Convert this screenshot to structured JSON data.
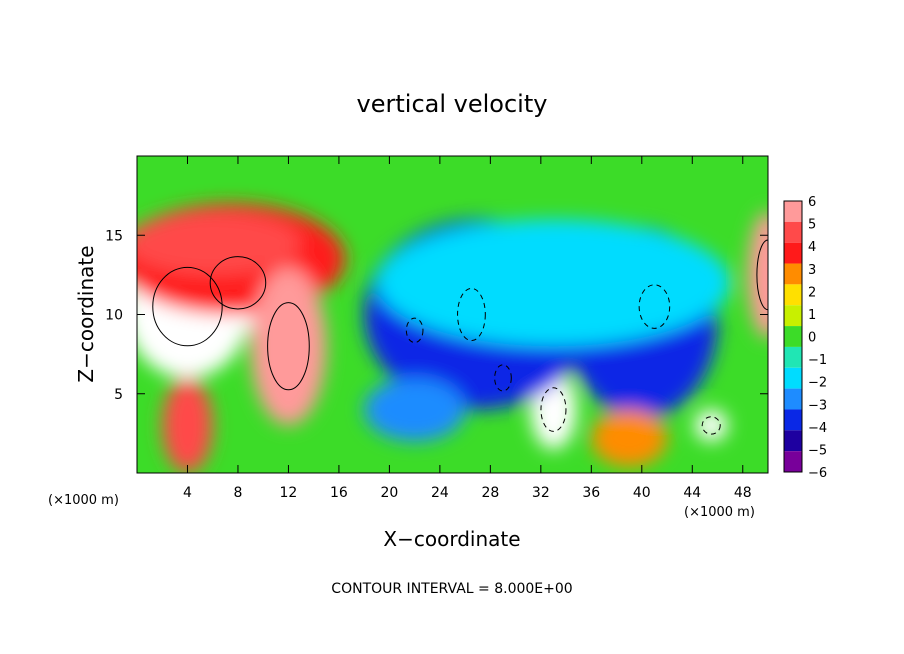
{
  "chart_data": {
    "type": "heatmap",
    "title": "vertical velocity",
    "xlabel": "X−coordinate",
    "ylabel": "Z−coordinate",
    "x_unit_left": "(×1000 m)",
    "x_unit_right": "(×1000 m)",
    "xlim": [
      0,
      50
    ],
    "ylim": [
      0,
      20
    ],
    "x_ticks": [
      4,
      8,
      12,
      16,
      20,
      24,
      28,
      32,
      36,
      40,
      44,
      48
    ],
    "x_tick_labels": [
      "4",
      "8",
      "12",
      "16",
      "20",
      "24",
      "28",
      "32",
      "36",
      "40",
      "44",
      "48"
    ],
    "y_ticks": [
      5,
      10,
      15
    ],
    "y_tick_labels": [
      "5",
      "10",
      "15"
    ],
    "colorbar": {
      "min": -6,
      "max": 6,
      "levels": [
        6,
        5,
        4,
        3,
        2,
        1,
        0,
        -1,
        -2,
        -3,
        -4,
        -5,
        -6
      ],
      "labels": [
        "6",
        "5",
        "4",
        "3",
        "2",
        "1",
        "0",
        "−1",
        "−2",
        "−3",
        "−4",
        "−5",
        "−6"
      ],
      "colors": [
        "#ff9a9a",
        "#ff4a4a",
        "#ff1a1a",
        "#ff8c00",
        "#ffe000",
        "#c8f000",
        "#3cdc28",
        "#20e6b4",
        "#00dcff",
        "#1e8cff",
        "#0a28e6",
        "#1e00a0",
        "#78009a"
      ]
    },
    "background_color": "#3cdc28",
    "features": [
      {
        "cx": 4,
        "cz": 10.5,
        "rx": 5,
        "rz": 4.5,
        "value": 7
      },
      {
        "cx": 8,
        "cz": 12,
        "rx": 4,
        "rz": 3,
        "value": 7
      },
      {
        "cx": 7.5,
        "cz": 13.5,
        "rx": 9,
        "rz": 3.5,
        "value": 4
      },
      {
        "cx": 6,
        "cz": 14.5,
        "rx": 7,
        "rz": 2,
        "value": 5
      },
      {
        "cx": 12,
        "cz": 8,
        "rx": 3,
        "rz": 5,
        "value": 6
      },
      {
        "cx": 4,
        "cz": 3,
        "rx": 2,
        "rz": 3,
        "value": 5
      },
      {
        "cx": 26.5,
        "cz": 10,
        "rx": 2,
        "rz": 3,
        "value": -7
      },
      {
        "cx": 22,
        "cz": 9,
        "rx": 1.2,
        "rz": 1.4,
        "value": -7
      },
      {
        "cx": 33,
        "cz": 4,
        "rx": 1.8,
        "rz": 2.5,
        "value": -7
      },
      {
        "cx": 41,
        "cz": 10.5,
        "rx": 2.2,
        "rz": 2.5,
        "value": -7
      },
      {
        "cx": 29,
        "cz": 6,
        "rx": 1.2,
        "rz": 1.5,
        "value": -7
      },
      {
        "cx": 45.5,
        "cz": 3,
        "rx": 1.3,
        "rz": 1,
        "value": -7
      },
      {
        "cx": 27,
        "cz": 10,
        "rx": 9,
        "rz": 6,
        "value": -4
      },
      {
        "cx": 40,
        "cz": 9.5,
        "rx": 6,
        "rz": 6,
        "value": -4
      },
      {
        "cx": 33,
        "cz": 12,
        "rx": 14,
        "rz": 4,
        "value": -2
      },
      {
        "cx": 22,
        "cz": 4,
        "rx": 4,
        "rz": 2,
        "value": -3
      },
      {
        "cx": 39,
        "cz": 2.2,
        "rx": 3,
        "rz": 1.8,
        "value": 3
      },
      {
        "cx": 50,
        "cz": 12.5,
        "rx": 1.6,
        "rz": 4,
        "value": 6
      }
    ],
    "contour_interval_text": "CONTOUR INTERVAL = 8.000E+00"
  }
}
